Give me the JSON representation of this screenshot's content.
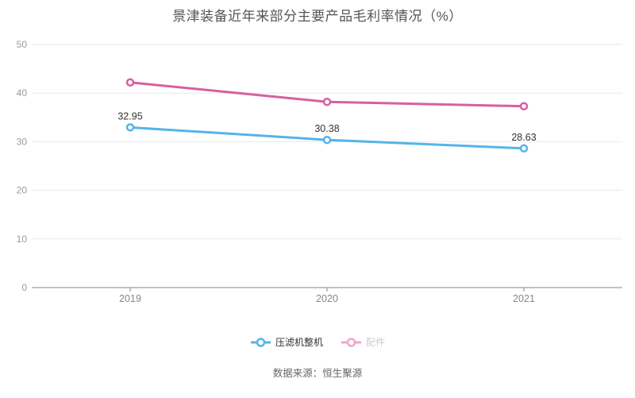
{
  "title": "景津装备近年来部分主要产品毛利率情况（%）",
  "source": "数据来源：恒生聚源",
  "colors": {
    "series1": "#54b4ea",
    "series2": "#d7609f",
    "legend2_icon": "#f0a6cd",
    "legend_active_text": "#333333",
    "legend_muted_text": "#cccccc",
    "grid": "#e4e9f4",
    "axis_line": "#888888",
    "y_label": "#999999",
    "x_label": "#888888",
    "value_label": "#333333",
    "title_color": "#555555"
  },
  "chart_data": {
    "type": "line",
    "categories": [
      "2019",
      "2020",
      "2021"
    ],
    "series": [
      {
        "name": "压滤机整机",
        "values": [
          32.95,
          30.38,
          28.63
        ],
        "labels": [
          "32.95",
          "30.38",
          "28.63"
        ],
        "color_key": "series1"
      },
      {
        "name": "配件",
        "values": [
          42.2,
          38.2,
          37.3
        ],
        "labels": [],
        "color_key": "series2"
      }
    ],
    "ylim": [
      0,
      50
    ],
    "yticks": [
      0,
      10,
      20,
      30,
      40,
      50
    ],
    "grid": true,
    "legend_position": "bottom"
  },
  "legend": {
    "items": [
      {
        "label": "压滤机整机"
      },
      {
        "label": "配件"
      }
    ]
  }
}
